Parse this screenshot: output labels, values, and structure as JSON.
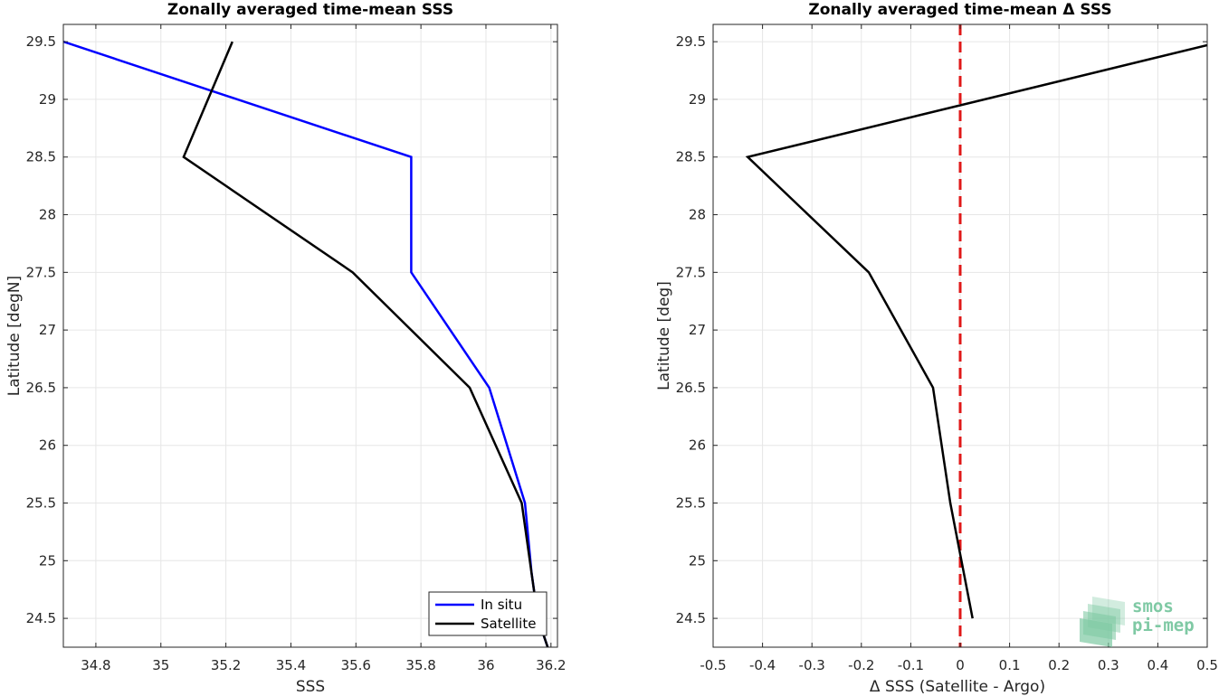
{
  "chart_data": [
    {
      "type": "line",
      "title": "Zonally averaged time-mean SSS",
      "xlabel": "SSS",
      "ylabel": "Latitude [degN]",
      "xlim": [
        34.7,
        36.22
      ],
      "ylim": [
        24.25,
        29.65
      ],
      "xticks": [
        34.8,
        35,
        35.2,
        35.4,
        35.6,
        35.8,
        36,
        36.2
      ],
      "xtick_labels": [
        "34.8",
        "35",
        "35.2",
        "35.4",
        "35.6",
        "35.8",
        "36",
        "36.2"
      ],
      "yticks": [
        24.5,
        25,
        25.5,
        26,
        26.5,
        27,
        27.5,
        28,
        28.5,
        29,
        29.5
      ],
      "ytick_labels": [
        "24.5",
        "25",
        "25.5",
        "26",
        "26.5",
        "27",
        "27.5",
        "28",
        "28.5",
        "29",
        "29.5"
      ],
      "grid": true,
      "legend_position": "bottom-right",
      "series": [
        {
          "name": "In situ",
          "color": "#0000ff",
          "points": [
            [
              34.7,
              29.5
            ],
            [
              35.77,
              28.5
            ],
            [
              35.77,
              27.5
            ],
            [
              36.01,
              26.5
            ],
            [
              36.12,
              25.5
            ],
            [
              36.14,
              24.9
            ],
            [
              36.16,
              24.5
            ],
            [
              36.19,
              24.25
            ]
          ]
        },
        {
          "name": "Satellite",
          "color": "#000000",
          "points": [
            [
              35.22,
              29.5
            ],
            [
              35.07,
              28.5
            ],
            [
              35.59,
              27.5
            ],
            [
              35.95,
              26.5
            ],
            [
              36.11,
              25.5
            ],
            [
              36.16,
              24.5
            ],
            [
              36.19,
              24.25
            ]
          ]
        }
      ]
    },
    {
      "type": "line",
      "title": "Zonally averaged time-mean Δ SSS",
      "xlabel": "Δ SSS (Satellite - Argo)",
      "ylabel": "Latitude [deg]",
      "xlim": [
        -0.5,
        0.5
      ],
      "ylim": [
        24.25,
        29.65
      ],
      "xticks": [
        -0.5,
        -0.4,
        -0.3,
        -0.2,
        -0.1,
        0,
        0.1,
        0.2,
        0.3,
        0.4,
        0.5
      ],
      "xtick_labels": [
        "-0.5",
        "-0.4",
        "-0.3",
        "-0.2",
        "-0.1",
        "0",
        "0.1",
        "0.2",
        "0.3",
        "0.4",
        "0.5"
      ],
      "yticks": [
        24.5,
        25,
        25.5,
        26,
        26.5,
        27,
        27.5,
        28,
        28.5,
        29,
        29.5
      ],
      "ytick_labels": [
        "24.5",
        "25",
        "25.5",
        "26",
        "26.5",
        "27",
        "27.5",
        "28",
        "28.5",
        "29",
        "29.5"
      ],
      "grid": true,
      "reference_line": {
        "x": 0,
        "color": "#e01818",
        "style": "dashed"
      },
      "series": [
        {
          "color": "#000000",
          "points": [
            [
              0.5,
              29.47
            ],
            [
              -0.43,
              28.5
            ],
            [
              -0.185,
              27.5
            ],
            [
              -0.055,
              26.5
            ],
            [
              -0.02,
              25.5
            ],
            [
              0.025,
              24.5
            ]
          ]
        }
      ]
    }
  ],
  "logo": {
    "line1": "smos",
    "line2": "pi-mep",
    "color": "#7fc9a4"
  }
}
